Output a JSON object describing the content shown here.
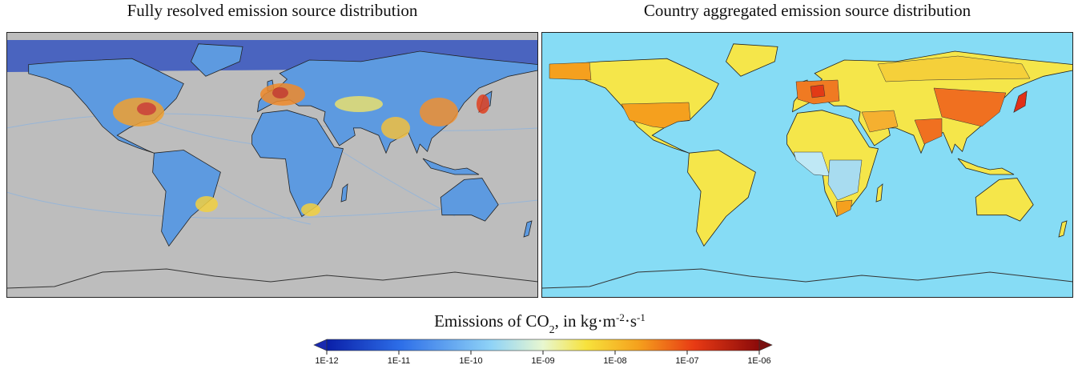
{
  "maps": [
    {
      "title": "Fully resolved emission source distribution"
    },
    {
      "title": "Country aggregated emission source distribution"
    }
  ],
  "colorbar": {
    "label": {
      "text1": "Emissions of CO",
      "sub": "2",
      "text2": ", in kg·m",
      "sup1": "-2",
      "text3": "·s",
      "sup2": "-1"
    },
    "lim": [
      1e-12,
      1e-06
    ],
    "log_scale": true,
    "ticks": [
      {
        "value": 1e-12,
        "label": "1E-12"
      },
      {
        "value": 1e-11,
        "label": "1E-11"
      },
      {
        "value": 1e-10,
        "label": "1E-10"
      },
      {
        "value": 1e-09,
        "label": "1E-09"
      },
      {
        "value": 1e-08,
        "label": "1E-08"
      },
      {
        "value": 1e-07,
        "label": "1E-07"
      },
      {
        "value": 1e-06,
        "label": "1E-06"
      }
    ]
  }
}
